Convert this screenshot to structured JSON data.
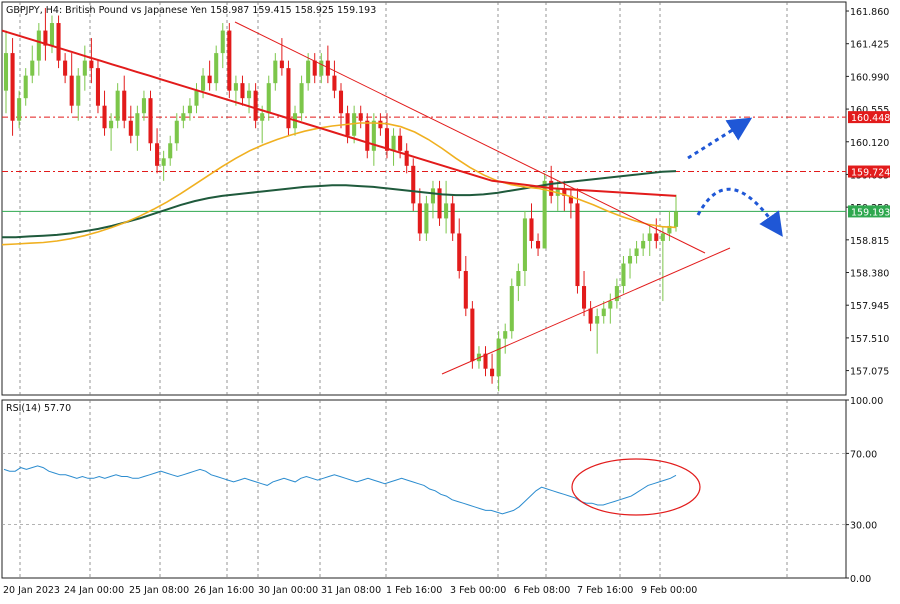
{
  "chart_data": [
    {
      "type": "candlestick",
      "title": "GBPJPY, H4:  British Pound vs Japanese Yen  158.987 159.415 158.925 159.193",
      "ylim": [
        156.75,
        161.98
      ],
      "y_ticks": [
        "161.860",
        "161.425",
        "160.990",
        "160.555",
        "160.120",
        "159.685",
        "159.250",
        "158.815",
        "158.380",
        "157.945",
        "157.510",
        "157.075"
      ],
      "x_labels": [
        "20 Jan 2023",
        "24 Jan 00:00",
        "25 Jan 08:00",
        "26 Jan 16:00",
        "30 Jan 00:00",
        "31 Jan 08:00",
        "1 Feb 16:00",
        "3 Feb 00:00",
        "6 Feb 08:00",
        "7 Feb 16:00",
        "9 Feb 00:00"
      ],
      "ohlc": [
        [
          160.8,
          161.6,
          160.5,
          161.3
        ],
        [
          161.3,
          161.5,
          160.2,
          160.4
        ],
        [
          160.4,
          160.8,
          160.3,
          160.7
        ],
        [
          160.7,
          161.1,
          160.6,
          161.0
        ],
        [
          161.0,
          161.4,
          160.9,
          161.2
        ],
        [
          161.2,
          161.7,
          161.0,
          161.6
        ],
        [
          161.6,
          161.9,
          161.2,
          161.4
        ],
        [
          161.4,
          161.8,
          161.3,
          161.7
        ],
        [
          161.7,
          161.8,
          161.1,
          161.2
        ],
        [
          161.2,
          161.3,
          160.9,
          161.0
        ],
        [
          161.0,
          161.3,
          160.5,
          160.6
        ],
        [
          160.6,
          161.1,
          160.4,
          161.0
        ],
        [
          161.0,
          161.4,
          160.8,
          161.2
        ],
        [
          161.2,
          161.5,
          160.9,
          161.1
        ],
        [
          161.1,
          161.2,
          160.5,
          160.6
        ],
        [
          160.6,
          160.8,
          160.2,
          160.3
        ],
        [
          160.3,
          160.5,
          160.0,
          160.4
        ],
        [
          160.4,
          160.9,
          160.3,
          160.8
        ],
        [
          160.8,
          161.0,
          160.3,
          160.4
        ],
        [
          160.4,
          160.6,
          160.1,
          160.2
        ],
        [
          160.2,
          160.6,
          160.0,
          160.5
        ],
        [
          160.5,
          160.8,
          160.4,
          160.7
        ],
        [
          160.7,
          160.8,
          160.0,
          160.1
        ],
        [
          160.1,
          160.3,
          159.7,
          159.8
        ],
        [
          159.8,
          160.0,
          159.6,
          159.9
        ],
        [
          159.9,
          160.2,
          159.8,
          160.1
        ],
        [
          160.1,
          160.5,
          160.0,
          160.4
        ],
        [
          160.4,
          160.6,
          160.3,
          160.5
        ],
        [
          160.5,
          160.7,
          160.4,
          160.6
        ],
        [
          160.6,
          160.9,
          160.5,
          160.8
        ],
        [
          160.8,
          161.1,
          160.7,
          161.0
        ],
        [
          161.0,
          161.2,
          160.8,
          160.9
        ],
        [
          160.9,
          161.4,
          160.8,
          161.3
        ],
        [
          161.3,
          161.7,
          161.1,
          161.6
        ],
        [
          161.6,
          161.7,
          160.7,
          160.8
        ],
        [
          160.8,
          161.0,
          160.6,
          160.9
        ],
        [
          160.9,
          161.0,
          160.6,
          160.7
        ],
        [
          160.7,
          160.9,
          160.5,
          160.8
        ],
        [
          160.8,
          160.9,
          160.3,
          160.4
        ],
        [
          160.4,
          160.6,
          160.1,
          160.5
        ],
        [
          160.5,
          161.0,
          160.4,
          160.9
        ],
        [
          160.9,
          161.3,
          160.8,
          161.2
        ],
        [
          161.2,
          161.5,
          161.0,
          161.1
        ],
        [
          161.1,
          161.2,
          160.2,
          160.3
        ],
        [
          160.3,
          160.6,
          160.2,
          160.5
        ],
        [
          160.5,
          161.0,
          160.4,
          160.9
        ],
        [
          160.9,
          161.3,
          160.8,
          161.2
        ],
        [
          161.2,
          161.3,
          160.9,
          161.0
        ],
        [
          161.0,
          161.3,
          160.9,
          161.2
        ],
        [
          161.2,
          161.4,
          160.9,
          161.0
        ],
        [
          161.0,
          161.2,
          160.7,
          160.8
        ],
        [
          160.8,
          160.9,
          160.3,
          160.5
        ],
        [
          160.5,
          160.6,
          160.1,
          160.2
        ],
        [
          160.2,
          160.6,
          160.1,
          160.5
        ],
        [
          160.5,
          160.6,
          160.3,
          160.4
        ],
        [
          160.4,
          160.5,
          159.9,
          160.0
        ],
        [
          160.0,
          160.5,
          159.8,
          160.4
        ],
        [
          160.4,
          160.5,
          160.2,
          160.3
        ],
        [
          160.3,
          160.5,
          159.9,
          160.0
        ],
        [
          160.0,
          160.3,
          159.8,
          160.2
        ],
        [
          160.2,
          160.3,
          159.9,
          160.0
        ],
        [
          160.0,
          160.1,
          159.7,
          159.8
        ],
        [
          159.8,
          159.9,
          159.2,
          159.3
        ],
        [
          159.3,
          159.5,
          158.8,
          158.9
        ],
        [
          158.9,
          159.4,
          158.8,
          159.3
        ],
        [
          159.3,
          159.6,
          159.1,
          159.5
        ],
        [
          159.5,
          159.6,
          159.0,
          159.1
        ],
        [
          159.1,
          159.6,
          158.9,
          159.3
        ],
        [
          159.3,
          159.4,
          158.8,
          158.9
        ],
        [
          158.9,
          159.1,
          158.3,
          158.4
        ],
        [
          158.4,
          158.6,
          157.8,
          157.9
        ],
        [
          157.9,
          158.0,
          157.1,
          157.2
        ],
        [
          157.2,
          157.4,
          157.1,
          157.3
        ],
        [
          157.3,
          157.4,
          157.0,
          157.1
        ],
        [
          157.1,
          157.3,
          156.9,
          157.0
        ],
        [
          157.0,
          157.6,
          156.8,
          157.5
        ],
        [
          157.5,
          157.7,
          157.3,
          157.6
        ],
        [
          157.6,
          158.3,
          157.5,
          158.2
        ],
        [
          158.2,
          158.5,
          158.0,
          158.4
        ],
        [
          158.4,
          159.2,
          158.2,
          159.1
        ],
        [
          159.1,
          159.3,
          158.7,
          158.8
        ],
        [
          158.8,
          158.9,
          158.6,
          158.7
        ],
        [
          158.7,
          159.7,
          158.7,
          159.6
        ],
        [
          159.6,
          159.8,
          159.3,
          159.4
        ],
        [
          159.4,
          159.6,
          159.2,
          159.5
        ],
        [
          159.5,
          159.6,
          159.2,
          159.4
        ],
        [
          159.4,
          159.5,
          159.1,
          159.3
        ],
        [
          159.3,
          159.5,
          158.1,
          158.2
        ],
        [
          158.2,
          158.4,
          157.8,
          157.9
        ],
        [
          157.9,
          158.0,
          157.6,
          157.7
        ],
        [
          157.7,
          157.9,
          157.3,
          157.8
        ],
        [
          157.8,
          158.0,
          157.7,
          157.9
        ],
        [
          157.9,
          158.1,
          157.7,
          158.0
        ],
        [
          158.0,
          158.3,
          157.9,
          158.2
        ],
        [
          158.2,
          158.6,
          158.1,
          158.5
        ],
        [
          158.5,
          158.7,
          158.3,
          158.6
        ],
        [
          158.6,
          158.8,
          158.5,
          158.7
        ],
        [
          158.7,
          158.9,
          158.6,
          158.8
        ],
        [
          158.8,
          159.0,
          158.6,
          158.9
        ],
        [
          158.9,
          159.1,
          158.7,
          158.8
        ],
        [
          158.8,
          159.0,
          158.0,
          158.9
        ],
        [
          158.9,
          159.2,
          158.8,
          159.0
        ],
        [
          158.987,
          159.415,
          158.925,
          159.193
        ]
      ],
      "ma_red": [
        161.6,
        161.55,
        161.5,
        161.45,
        161.4,
        161.35,
        161.3,
        161.25,
        161.2,
        161.15,
        161.1,
        161.05,
        161.0,
        160.95,
        160.9,
        160.85,
        160.8,
        160.75,
        160.7,
        160.65,
        160.6,
        160.55,
        160.5,
        160.45,
        160.4,
        160.35,
        160.3,
        160.25,
        160.2,
        160.15,
        160.1,
        160.05,
        160.0,
        159.95,
        159.9,
        159.85,
        159.8,
        159.75,
        159.7,
        159.65,
        159.6,
        159.58,
        159.56,
        159.54,
        159.52,
        159.5,
        159.49,
        159.48,
        159.47,
        159.46,
        159.45,
        159.44,
        159.43,
        159.42,
        159.41,
        159.4
      ],
      "ma_orange": [
        158.75,
        158.76,
        158.77,
        158.78,
        158.8,
        158.83,
        158.87,
        158.92,
        158.98,
        159.05,
        159.13,
        159.22,
        159.32,
        159.43,
        159.55,
        159.67,
        159.79,
        159.9,
        160.0,
        160.08,
        160.15,
        160.21,
        160.26,
        160.3,
        160.33,
        160.35,
        160.37,
        160.37,
        160.36,
        160.32,
        160.25,
        160.15,
        160.03,
        159.9,
        159.78,
        159.68,
        159.6,
        159.55,
        159.52,
        159.5,
        159.46,
        159.41,
        159.35,
        159.28,
        159.2,
        159.13,
        159.07,
        159.02,
        158.99,
        158.98
      ],
      "ma_dark": [
        158.85,
        158.85,
        158.86,
        158.87,
        158.88,
        158.9,
        158.93,
        158.96,
        159.0,
        159.05,
        159.1,
        159.16,
        159.22,
        159.28,
        159.33,
        159.37,
        159.4,
        159.42,
        159.44,
        159.46,
        159.48,
        159.5,
        159.52,
        159.53,
        159.54,
        159.54,
        159.53,
        159.52,
        159.5,
        159.48,
        159.46,
        159.44,
        159.42,
        159.41,
        159.41,
        159.42,
        159.44,
        159.47,
        159.5,
        159.53,
        159.56,
        159.58,
        159.6,
        159.62,
        159.64,
        159.66,
        159.68,
        159.7,
        159.72,
        159.73
      ],
      "levels": [
        {
          "value": 160.448,
          "label": "160.448",
          "color": "#e21b1b",
          "style": "dash-dot"
        },
        {
          "value": 159.724,
          "label": "159.724",
          "color": "#e21b1b",
          "style": "dash-dot"
        },
        {
          "value": 159.193,
          "label": "159.193",
          "color": "#2fa84f",
          "style": "solid"
        }
      ],
      "colors": {
        "bull": "#7cc64a",
        "bear": "#e21b1b",
        "ma_red": "#e21b1b",
        "ma_orange": "#f0b020",
        "ma_dark": "#1f5a3c",
        "arrow": "#1f57d6",
        "trendline": "#e21b1b",
        "grid": "#7a7a7a"
      },
      "grid": true
    },
    {
      "type": "line",
      "title": "RSI(14) 57.70",
      "ylim": [
        0,
        100
      ],
      "y_ticks": [
        "100.00",
        "70.00",
        "30.00",
        "0.00"
      ],
      "levels": [
        70,
        30
      ],
      "values": [
        61,
        60,
        60,
        62,
        61,
        62,
        63,
        62,
        60,
        59,
        58,
        58,
        57,
        56,
        57,
        56,
        56,
        57,
        56,
        57,
        58,
        57,
        57,
        56,
        56,
        57,
        58,
        59,
        60,
        59,
        58,
        57,
        58,
        59,
        60,
        61,
        60,
        58,
        57,
        56,
        55,
        54,
        55,
        56,
        55,
        54,
        53,
        52,
        54,
        55,
        56,
        55,
        54,
        56,
        57,
        56,
        55,
        56,
        57,
        58,
        57,
        56,
        55,
        54,
        55,
        56,
        55,
        54,
        53,
        54,
        55,
        56,
        55,
        54,
        53,
        52,
        50,
        49,
        47,
        46,
        44,
        43,
        42,
        41,
        40,
        39,
        38,
        38,
        37,
        36,
        37,
        38,
        40,
        43,
        46,
        49,
        51,
        50,
        49,
        48,
        47,
        46,
        45,
        43,
        42,
        42,
        41,
        41,
        42,
        43,
        44,
        45,
        46,
        48,
        50,
        52,
        53,
        54,
        55,
        56,
        57.7
      ],
      "annotation": "ellipse"
    }
  ]
}
